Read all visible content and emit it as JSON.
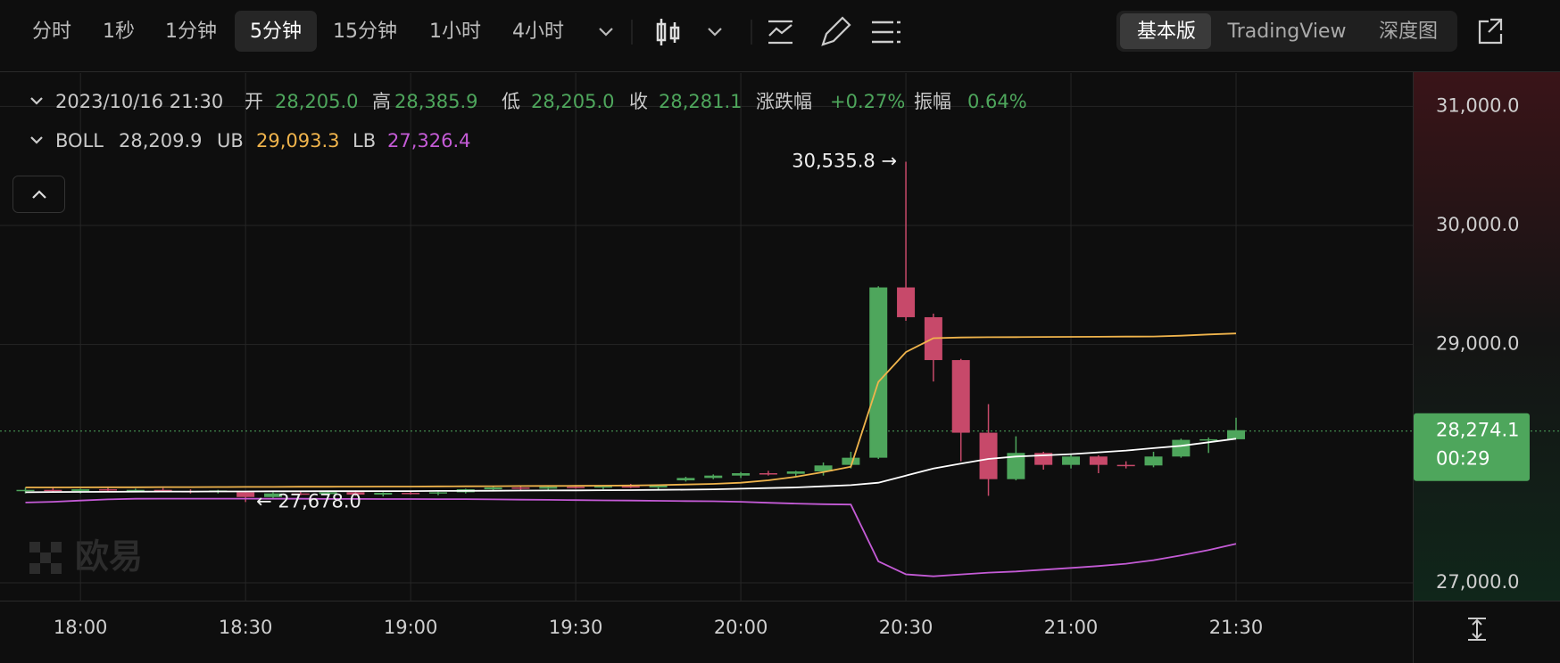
{
  "toolbar": {
    "intervals": [
      "分时",
      "1秒",
      "1分钟",
      "5分钟",
      "15分钟",
      "1小时",
      "4小时"
    ],
    "views": [
      "基本版",
      "TradingView",
      "深度图"
    ]
  },
  "chart_data": {
    "type": "candlestick",
    "legend_date": "2023/10/16 21:30",
    "ohlc_legend": [
      {
        "label": "开",
        "value": "28,205.0"
      },
      {
        "label": "高",
        "value": "28,385.9"
      },
      {
        "label": "低",
        "value": "28,205.0"
      },
      {
        "label": "收",
        "value": "28,281.1"
      },
      {
        "label": "涨跌幅",
        "value": "+0.27%"
      },
      {
        "label": "振幅",
        "value": "0.64%"
      }
    ],
    "indicator": "BOLL",
    "categories": [
      null,
      null,
      "18:00",
      null,
      null,
      null,
      null,
      null,
      "18:30",
      null,
      null,
      null,
      null,
      null,
      "19:00",
      null,
      null,
      null,
      null,
      null,
      "19:30",
      null,
      null,
      null,
      null,
      null,
      "20:00",
      null,
      null,
      null,
      null,
      null,
      "20:30",
      null,
      null,
      null,
      null,
      null,
      "21:00",
      null,
      null,
      null,
      null,
      null,
      "21:30"
    ],
    "open": [
      27770,
      27780,
      27770,
      27785,
      27775,
      27780,
      27770,
      27765,
      27760,
      27720,
      27750,
      27745,
      27760,
      27740,
      27755,
      27750,
      27760,
      27785,
      27800,
      27790,
      27805,
      27800,
      27810,
      27800,
      27860,
      27880,
      27900,
      27920,
      27915,
      27935,
      27990,
      28050,
      29480,
      29230,
      28870,
      28260,
      27870,
      28090,
      27990,
      28060,
      27990,
      27985,
      28060,
      28200,
      28205.0
    ],
    "high": [
      27800,
      27800,
      27790,
      27800,
      27790,
      27795,
      27785,
      27780,
      27770,
      27760,
      27770,
      27765,
      27775,
      27760,
      27770,
      27765,
      27790,
      27810,
      27815,
      27810,
      27820,
      27815,
      27830,
      27820,
      27890,
      27910,
      27930,
      27940,
      27940,
      28010,
      28100,
      29490,
      30535.8,
      29260,
      28880,
      28500,
      28230,
      28100,
      28080,
      28070,
      28020,
      28100,
      28210,
      28220,
      28385.9
    ],
    "low": [
      27750,
      27760,
      27750,
      27770,
      27760,
      27765,
      27750,
      27750,
      27678,
      27710,
      27735,
      27730,
      27730,
      27725,
      27740,
      27735,
      27750,
      27770,
      27780,
      27775,
      27790,
      27785,
      27795,
      27780,
      27850,
      27870,
      27880,
      27900,
      27895,
      27900,
      27960,
      28040,
      29200,
      28690,
      28020,
      27730,
      27860,
      27950,
      27960,
      27920,
      27960,
      27970,
      28050,
      28090,
      28205.0
    ],
    "close": [
      27780,
      27770,
      27785,
      27775,
      27780,
      27770,
      27765,
      27775,
      27720,
      27750,
      27745,
      27760,
      27740,
      27755,
      27750,
      27760,
      27785,
      27800,
      27790,
      27805,
      27800,
      27810,
      27800,
      27815,
      27880,
      27900,
      27920,
      27915,
      27935,
      27985,
      28050,
      29480,
      29230,
      28870,
      28260,
      27870,
      28090,
      27990,
      28060,
      27990,
      27985,
      28060,
      28200,
      28205,
      28281.1
    ],
    "up_color": "#4ea65c",
    "down_color": "#c7496a",
    "series": [
      {
        "name": "BOLL",
        "color": "#ffffff",
        "last_label": "28,209.9",
        "values": [
          27760,
          27762,
          27763,
          27764,
          27765,
          27766,
          27766,
          27767,
          27767,
          27768,
          27768,
          27769,
          27769,
          27770,
          27770,
          27771,
          27772,
          27773,
          27774,
          27775,
          27776,
          27777,
          27778,
          27780,
          27782,
          27785,
          27790,
          27795,
          27800,
          27810,
          27820,
          27840,
          27900,
          27960,
          28000,
          28040,
          28060,
          28070,
          28080,
          28095,
          28110,
          28130,
          28150,
          28180,
          28209.9
        ]
      },
      {
        "name": "UB",
        "color": "#f0b44c",
        "last_label": "29,093.3",
        "values": [
          27800,
          27800,
          27801,
          27802,
          27802,
          27803,
          27803,
          27804,
          27805,
          27805,
          27806,
          27806,
          27807,
          27808,
          27808,
          27809,
          27810,
          27811,
          27812,
          27813,
          27814,
          27815,
          27817,
          27820,
          27825,
          27830,
          27840,
          27860,
          27890,
          27930,
          27975,
          28686,
          28937,
          29054,
          29060,
          29062,
          29063,
          29064,
          29065,
          29066,
          29067,
          29068,
          29075,
          29085,
          29093.3
        ]
      },
      {
        "name": "LB",
        "color": "#c45bd6",
        "last_label": "27,326.4",
        "values": [
          27674,
          27680,
          27690,
          27700,
          27705,
          27706,
          27706,
          27706,
          27706,
          27705,
          27705,
          27704,
          27704,
          27703,
          27703,
          27702,
          27702,
          27700,
          27698,
          27696,
          27694,
          27692,
          27690,
          27688,
          27686,
          27684,
          27680,
          27672,
          27665,
          27660,
          27657,
          27180,
          27071,
          27054,
          27070,
          27085,
          27095,
          27110,
          27125,
          27140,
          27160,
          27190,
          27230,
          27275,
          27326.4
        ]
      }
    ],
    "max_label": "30,535.8 →",
    "min_label": "← 27,678.0",
    "current_price": {
      "value": 28274.1,
      "label": "28,274.1",
      "countdown": "00:29"
    },
    "ylim": [
      26850,
      31280
    ],
    "yticks": [
      {
        "value": 27000,
        "label": "27,000.0"
      },
      {
        "value": 29000,
        "label": "29,000.0"
      },
      {
        "value": 30000,
        "label": "30,000.0"
      },
      {
        "value": 31000,
        "label": "31,000.0"
      }
    ],
    "grid": true,
    "watermark": "欧易"
  }
}
